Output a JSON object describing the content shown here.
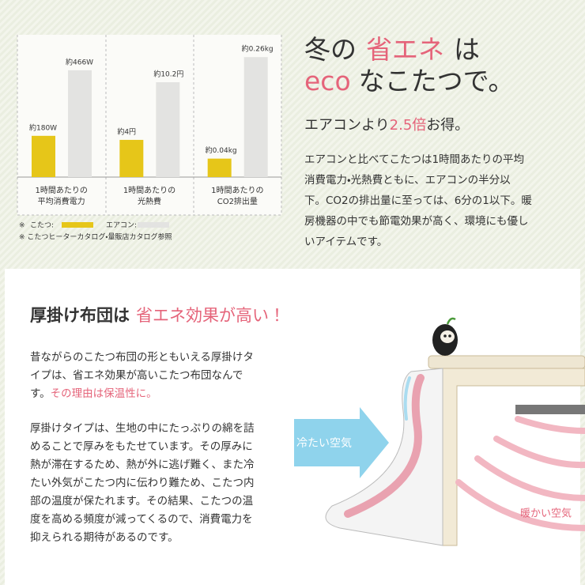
{
  "chart_data": {
    "type": "bar",
    "categories": [
      [
        "1時間あたりの",
        "平均消費電力"
      ],
      [
        "1時間あたりの",
        "光熱費"
      ],
      [
        "1時間あたりの",
        "CO2排出量"
      ]
    ],
    "series": [
      {
        "name": "こたつ:",
        "color": "#e6c619",
        "values": [
          180,
          4,
          0.04
        ],
        "value_labels": [
          "約180W",
          "約4円",
          "約0.04kg"
        ]
      },
      {
        "name": "エアコン:",
        "color": "#e3e3e1",
        "values": [
          466,
          10.2,
          0.26
        ],
        "value_labels": [
          "約466W",
          "約10.2円",
          "約0.26kg"
        ]
      }
    ],
    "ylims": [
      [
        0,
        552
      ],
      [
        0,
        13.6
      ],
      [
        0,
        0.274
      ]
    ],
    "legend_mark": "※",
    "note": "※ こたつヒーターカタログ・量販店カタログ参照"
  },
  "headline": {
    "line1": [
      "冬の",
      "省エネ",
      "は"
    ],
    "line2": [
      "eco",
      "なこたつで。"
    ]
  },
  "subhead": [
    "エアコンより",
    "2.5倍",
    "お得。"
  ],
  "body": [
    "エアコンと比べてこたつは1時間あたりの平均",
    "消費電力・光熱費ともに、エアコンの半分以",
    "下。CO2の排出量に至っては、6分の1以下。暖",
    "房機器の中でも節電効果が高く、環境にも優し",
    "いアイテムです。"
  ],
  "section2": {
    "title": [
      "厚掛け布団は",
      "省エネ効果が高い！"
    ],
    "para1": [
      "昔ながらのこたつ布団の形ともいえる厚掛けタ",
      "イプは、省エネ効果が高いこたつ布団なんで"
    ],
    "para1_last": [
      "す。",
      "その理由は保温性に。"
    ],
    "para2": [
      "厚掛けタイプは、生地の中にたっぷりの綿を詰",
      "めることで厚みをもたせています。その厚みに",
      "熱が滞在するため、熱が外に逃げ難く、また冷",
      "たい外気がこたつ内に伝わり難ため、こたつ内",
      "部の温度が保たれます。その結果、こたつの温",
      "度を高める頻度が減ってくるので、消費電力を",
      "抑えられる期待があるのです。"
    ],
    "cold_label": "冷たい空気",
    "warm_label": "暖かい空気"
  }
}
